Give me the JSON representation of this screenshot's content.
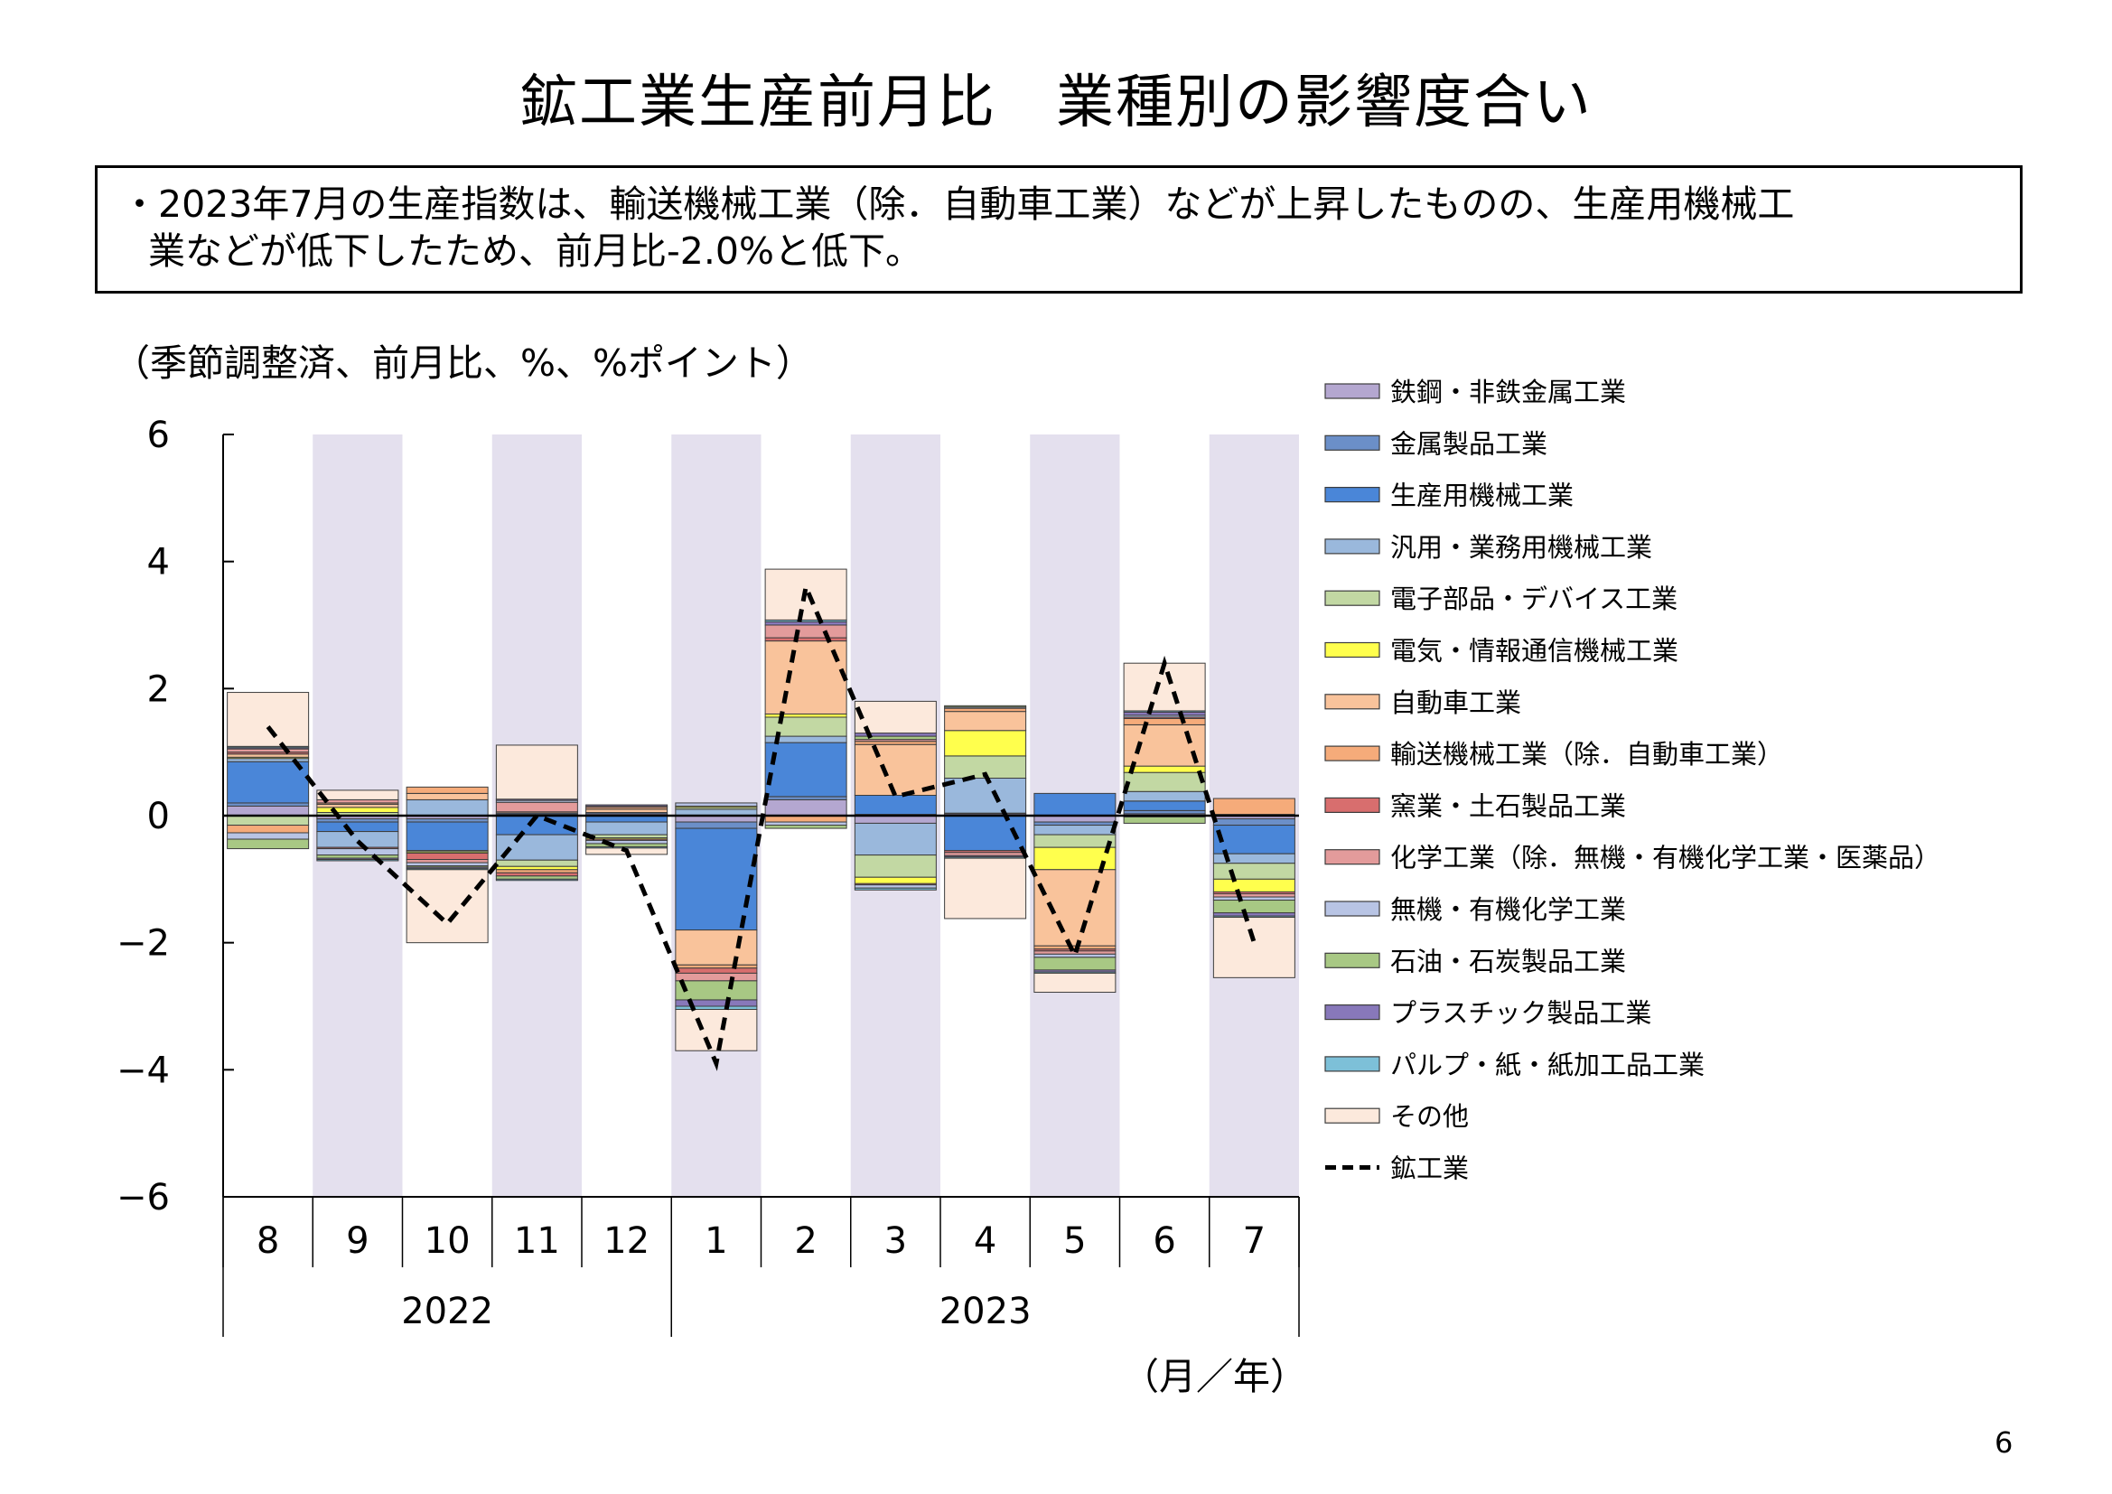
{
  "title": "鉱工業生産前月比　業種別の影響度合い",
  "summary": {
    "line1": "・2023年7月の生産指数は、輸送機械工業（除．自動車工業）などが上昇したものの、生産用機械工",
    "line2": "業などが低下したため、前月比-2.0%と低下。"
  },
  "unit_note": "（季節調整済、前月比、%、%ポイント）",
  "axis_caption": "（月／年）",
  "page_number": "6",
  "chart_data": {
    "type": "bar",
    "stacked": true,
    "months": [
      "8",
      "9",
      "10",
      "11",
      "12",
      "1",
      "2",
      "3",
      "4",
      "5",
      "6",
      "7"
    ],
    "years": [
      {
        "label": "2022",
        "months": 5
      },
      {
        "label": "2023",
        "months": 7
      }
    ],
    "ylim": [
      -6,
      6
    ],
    "yticks": [
      "6",
      "4",
      "2",
      "0",
      "−2",
      "−4",
      "−6"
    ],
    "yticks_values": [
      6,
      4,
      2,
      0,
      -2,
      -4,
      -6
    ],
    "shaded_months": [
      1,
      3,
      5,
      7,
      9,
      11
    ],
    "shade_color": "#e4e0ee",
    "series": [
      {
        "name": "鉄鋼・非鉄金属工業",
        "color": "#b4a7d0",
        "values": [
          0.15,
          -0.05,
          -0.05,
          0.02,
          0.03,
          -0.1,
          0.25,
          -0.12,
          0.03,
          -0.1,
          0.03,
          -0.05
        ]
      },
      {
        "name": "金属製品工業",
        "color": "#6b8fc8",
        "values": [
          0.05,
          -0.05,
          -0.05,
          0.02,
          0.02,
          -0.1,
          0.05,
          0.02,
          0.01,
          -0.05,
          0.05,
          -0.1
        ]
      },
      {
        "name": "生産用機械工業",
        "color": "#4a86d8",
        "values": [
          0.65,
          -0.15,
          -0.45,
          -0.3,
          -0.1,
          -1.6,
          0.85,
          0.3,
          -0.55,
          0.35,
          0.15,
          -0.45
        ]
      },
      {
        "name": "汎用・業務用機械工業",
        "color": "#9ab8dc",
        "values": [
          0.05,
          -0.25,
          0.25,
          -0.4,
          -0.2,
          0.1,
          0.1,
          -0.5,
          0.55,
          -0.15,
          0.15,
          -0.15
        ]
      },
      {
        "name": "電子部品・デバイス工業",
        "color": "#c2d8a3",
        "values": [
          -0.15,
          0.05,
          -0.02,
          -0.1,
          -0.05,
          0.03,
          0.3,
          -0.35,
          0.35,
          -0.2,
          0.3,
          -0.25
        ]
      },
      {
        "name": "電気・情報通信機械工業",
        "color": "#ffff4d",
        "values": [
          0.02,
          0.08,
          -0.02,
          -0.05,
          -0.02,
          0.02,
          0.05,
          -0.1,
          0.4,
          -0.35,
          0.1,
          -0.2
        ]
      },
      {
        "name": "自動車工業",
        "color": "#f9c39b",
        "values": [
          0.05,
          0.05,
          0.1,
          0.02,
          0.05,
          -0.55,
          1.15,
          0.8,
          0.3,
          -1.2,
          0.65,
          0.02
        ]
      },
      {
        "name": "輸送機械工業（除．自動車工業）",
        "color": "#f5ab7a",
        "values": [
          -0.12,
          0.02,
          0.1,
          -0.05,
          0.03,
          -0.05,
          -0.1,
          0.05,
          0.05,
          -0.05,
          0.1,
          0.25
        ]
      },
      {
        "name": "窯業・土石製品工業",
        "color": "#d86e6e",
        "values": [
          0.03,
          -0.02,
          -0.1,
          -0.05,
          -0.02,
          -0.08,
          0.05,
          -0.02,
          -0.03,
          -0.03,
          0.02,
          -0.03
        ]
      },
      {
        "name": "化学工業（除．無機・有機化学工業・医薬品）",
        "color": "#e39b9b",
        "values": [
          0.05,
          0.05,
          -0.05,
          0.15,
          0.02,
          -0.12,
          0.2,
          0.03,
          -0.05,
          -0.05,
          -0.02,
          -0.05
        ]
      },
      {
        "name": "無機・有機化学工業",
        "color": "#b8c4e4",
        "values": [
          -0.1,
          -0.1,
          -0.05,
          0.03,
          -0.05,
          0.05,
          -0.05,
          -0.05,
          0.02,
          -0.05,
          0.03,
          -0.05
        ]
      },
      {
        "name": "石油・石炭製品工業",
        "color": "#a8c884",
        "values": [
          -0.15,
          -0.05,
          -0.02,
          -0.05,
          -0.05,
          -0.3,
          -0.05,
          0.05,
          0.02,
          -0.2,
          -0.1,
          -0.2
        ]
      },
      {
        "name": "プラスチック製品工業",
        "color": "#8878ba",
        "values": [
          0.02,
          -0.02,
          -0.02,
          0.02,
          0.02,
          -0.1,
          0.05,
          0.05,
          -0.02,
          -0.03,
          0.05,
          -0.05
        ]
      },
      {
        "name": "パルプ・紙・紙加工品工業",
        "color": "#7dc0d8",
        "values": [
          0.02,
          -0.02,
          -0.02,
          -0.02,
          -0.02,
          -0.05,
          0.03,
          -0.03,
          -0.02,
          -0.02,
          0.02,
          -0.02
        ]
      },
      {
        "name": "その他",
        "color": "#fce9dc",
        "values": [
          0.85,
          0.15,
          -1.15,
          0.85,
          -0.1,
          -0.65,
          0.8,
          0.5,
          -0.95,
          -0.3,
          0.75,
          -0.95
        ]
      }
    ],
    "line": {
      "name": "鉱工業",
      "color": "#000000",
      "values": [
        1.4,
        -0.4,
        -1.7,
        0.0,
        -0.55,
        -3.9,
        3.6,
        0.3,
        0.65,
        -2.2,
        2.4,
        -2.0
      ]
    }
  }
}
